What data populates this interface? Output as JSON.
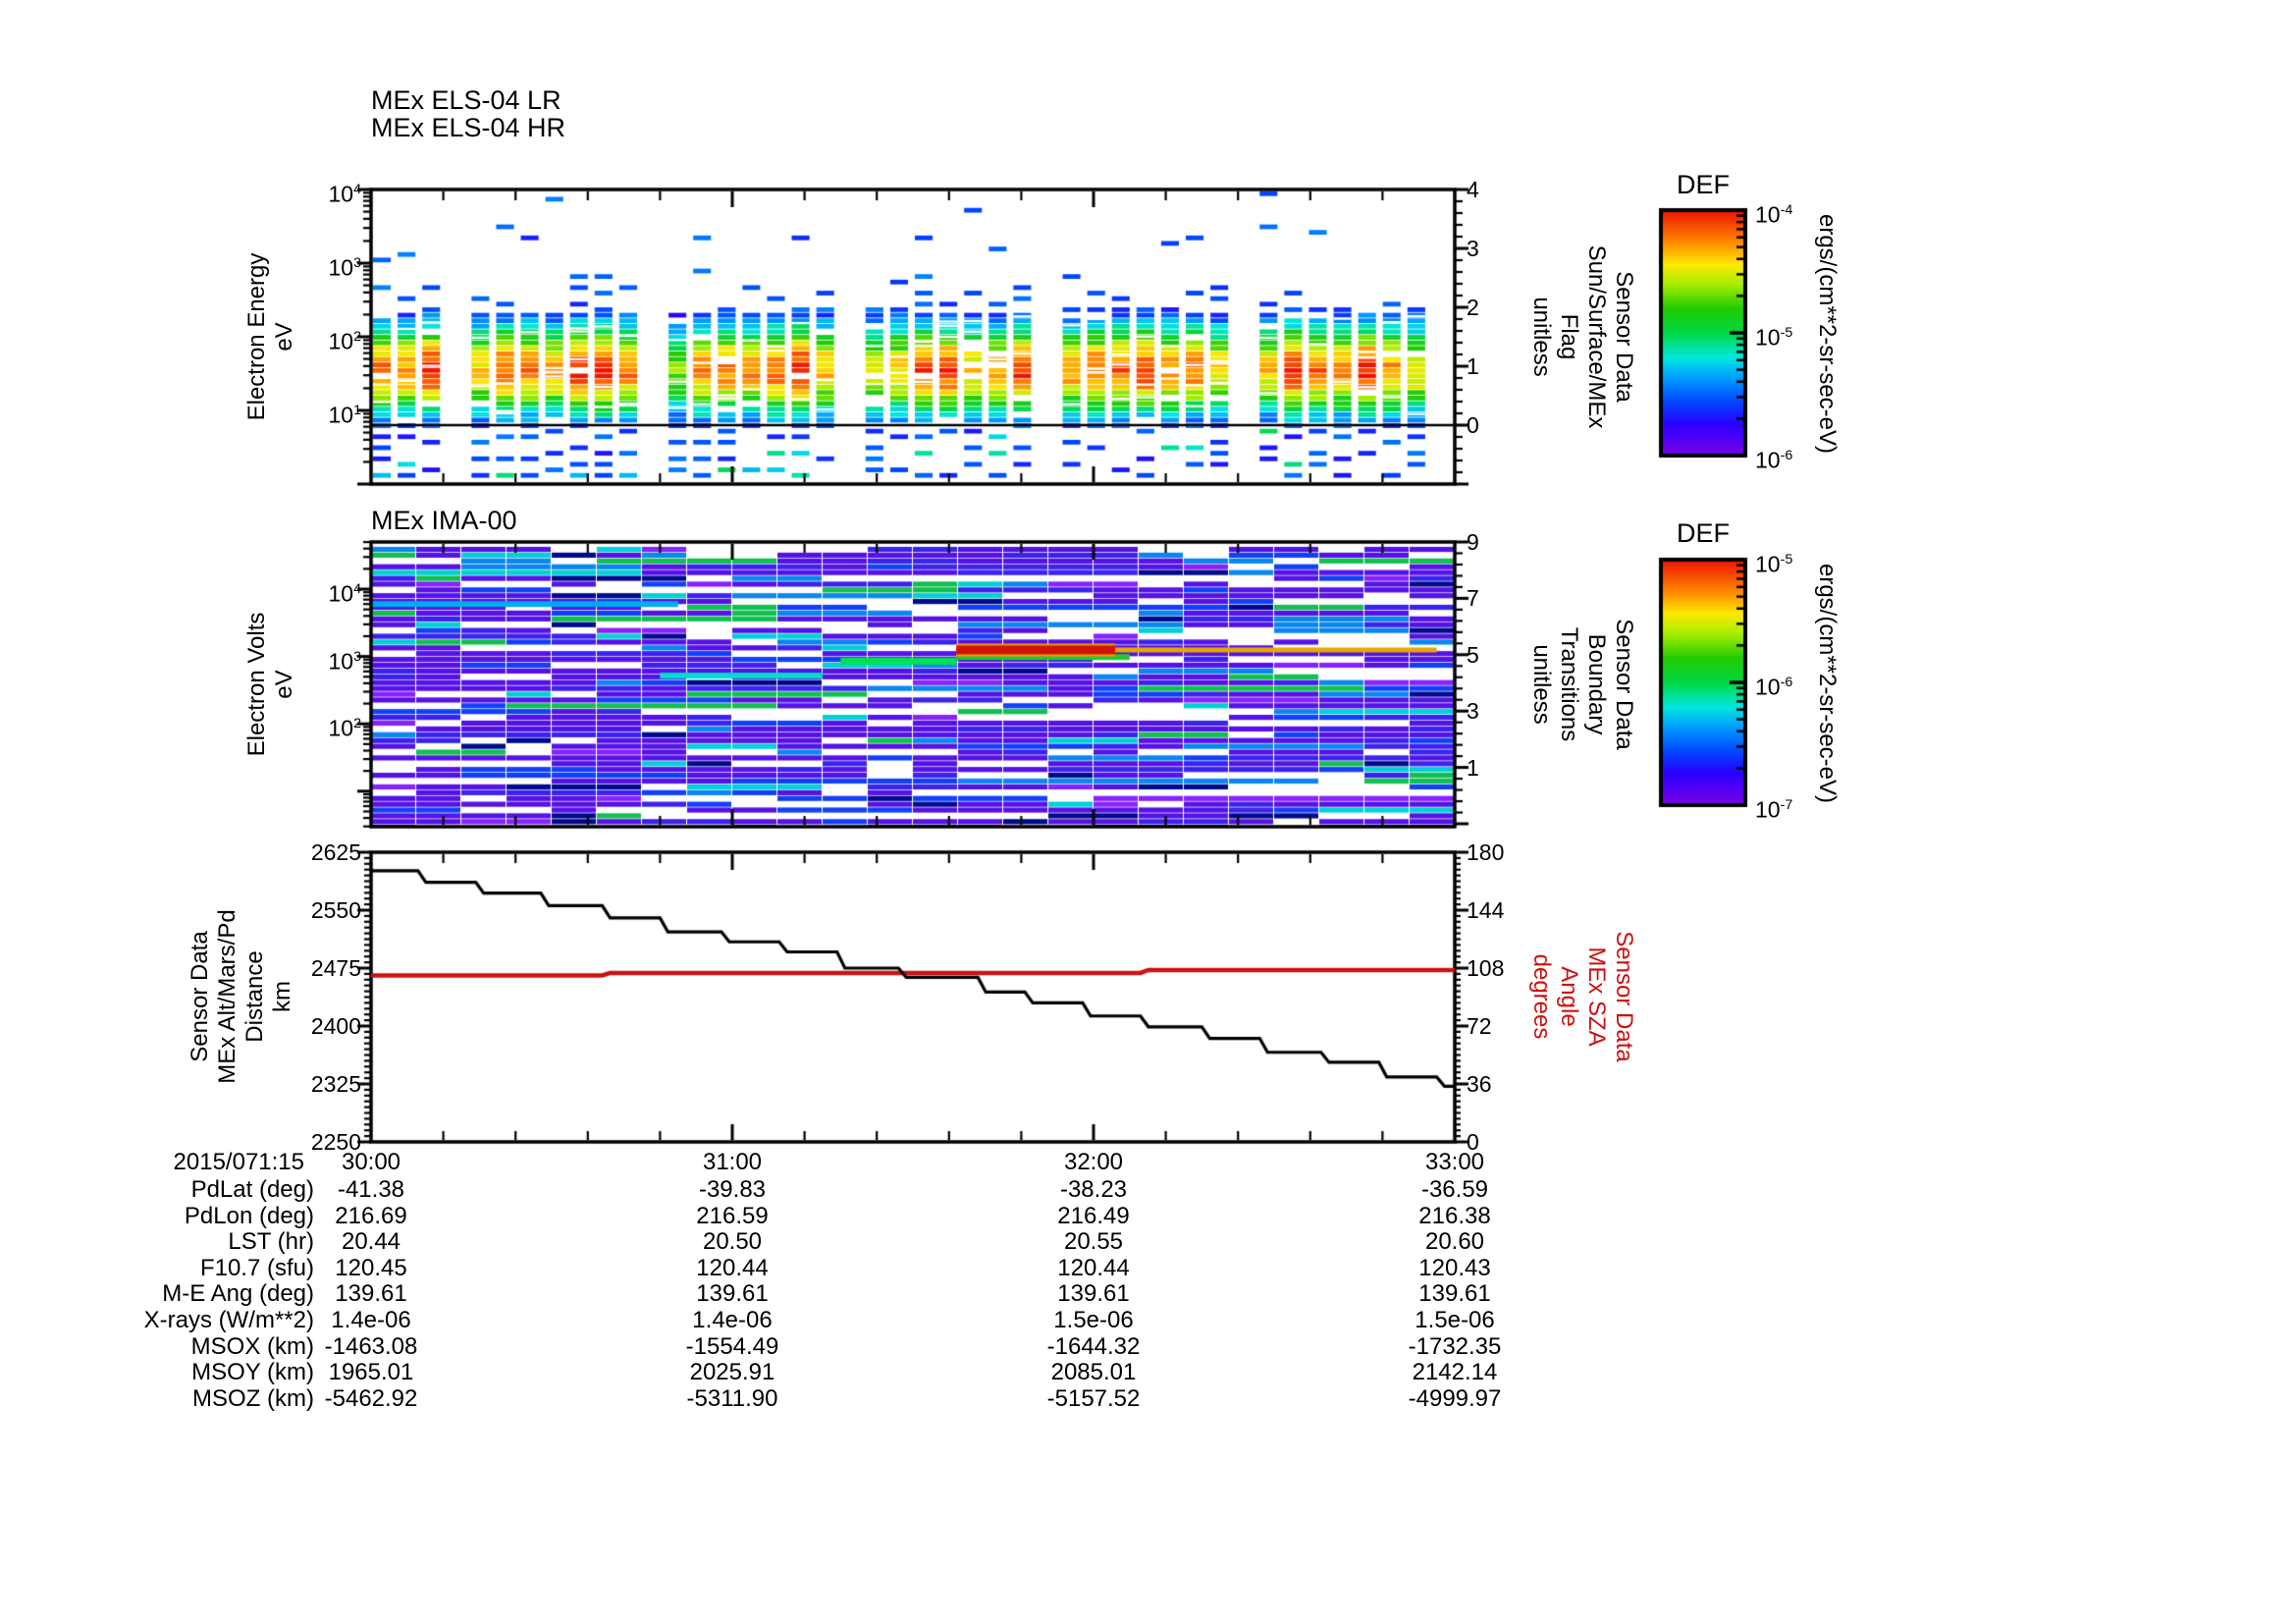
{
  "page": {
    "background": "#ffffff"
  },
  "x_axis": {
    "date_label": "2015/071:15",
    "tick_labels": [
      "30:00",
      "31:00",
      "32:00",
      "33:00"
    ],
    "tick_minutes": [
      30,
      31,
      32,
      33
    ],
    "minutes_range": [
      30,
      33
    ],
    "minor_tick_step_minutes": 0.2
  },
  "chart_data": [
    {
      "id": "els_spectrogram",
      "type": "heatmap",
      "title_line1": "MEx ELS-04 LR",
      "title_line2": "MEx ELS-04 HR",
      "ylabel_lines": [
        "Electron Energy",
        "eV"
      ],
      "y_scale": "log",
      "y_range_ev": [
        1,
        10000
      ],
      "y_tick_exponents": [
        4,
        3,
        2,
        1
      ],
      "right_axis": {
        "label_lines": [
          "Sensor Data",
          "Sun/Surface/MEx",
          "Flag",
          "unitless"
        ],
        "ticks": [
          4,
          3,
          2,
          1,
          0
        ],
        "flag_line_value": 0
      },
      "colorbar": {
        "title": "DEF",
        "tick_exponents": [
          -4,
          -5,
          -6
        ],
        "unit_label": "ergs/(cm**2-sr-sec-eV)"
      },
      "features": {
        "gap_period_columns": 8,
        "band_peak_ev": 38,
        "band_sigma_decades": 0.46,
        "band_range_ev": [
          7,
          200
        ],
        "scattered_dash_range_ev": [
          200,
          9000
        ]
      },
      "content_summary": "Electron energy spectrogram: intense red-orange flux band 25-80 eV, yellow-green 8-150 eV, blue-cyan fringes, sparse blue dashes 150 eV - 9 keV and below 6 eV, periodic white data gaps, black flag line at flag value 0"
    },
    {
      "id": "ima_spectrogram",
      "type": "heatmap",
      "title": "MEx IMA-00",
      "ylabel_lines": [
        "Electron Volts",
        "eV"
      ],
      "y_scale": "log",
      "y_range_ev": [
        3,
        50000
      ],
      "y_tick_exponents": [
        4,
        3,
        2
      ],
      "right_axis": {
        "label_lines": [
          "Sensor Data",
          "Boundary",
          "Transitions",
          "unitless"
        ],
        "ticks": [
          9,
          7,
          5,
          3,
          1
        ]
      },
      "colorbar": {
        "title": "DEF",
        "tick_exponents": [
          -5,
          -6,
          -7
        ],
        "unit_label": "ergs/(cm**2-sr-sec-eV)"
      },
      "features": [
        {
          "kind": "row",
          "energy_ev": 6000,
          "t": [
            30.0,
            30.85
          ],
          "color": "#00aaee",
          "h": 6
        },
        {
          "kind": "row",
          "energy_ev": 520,
          "t": [
            30.8,
            31.25
          ],
          "color": "#00ddcc",
          "h": 6
        },
        {
          "kind": "row",
          "energy_ev": 850,
          "t": [
            31.3,
            31.62
          ],
          "color": "#00e055",
          "h": 7
        },
        {
          "kind": "row",
          "energy_ev": 980,
          "t": [
            31.62,
            32.1
          ],
          "color": "#22c832",
          "h": 6
        },
        {
          "kind": "row",
          "energy_ev": 1250,
          "t": [
            31.62,
            32.06
          ],
          "color": "#cc1500",
          "h": 9,
          "halo": "#ff9900"
        },
        {
          "kind": "row",
          "energy_ev": 1250,
          "t": [
            32.06,
            32.95
          ],
          "color": "#e6a800",
          "h": 5
        }
      ],
      "content_summary": "Ion/electron volt spectrogram: dense horizontal purple-indigo and blue striping with white gaps in blocky columns, occasional cyan rows, bright green segments near 850-1000 eV around 31:20-32:05, red-orange streak near 1250 eV from 31:37 to 32:04"
    },
    {
      "id": "alt_sza_line",
      "type": "line",
      "left_axis": {
        "label_lines": [
          "Sensor Data",
          "MEx Alt/Mars/Pd",
          "Distance",
          "km"
        ],
        "ticks": [
          2625,
          2550,
          2475,
          2400,
          2325,
          2250
        ],
        "range": [
          2250,
          2625
        ],
        "major_step": 75,
        "minor_step": 7.5
      },
      "right_axis": {
        "label_lines": [
          "Sensor Data",
          "MEx SZA",
          "Angle",
          "degrees"
        ],
        "ticks": [
          180,
          144,
          108,
          72,
          36,
          0
        ],
        "range": [
          0,
          180
        ],
        "major_step": 36,
        "minor_step": 3.6,
        "color": "#cc1111"
      },
      "series": [
        {
          "name": "MEx Alt/Mars/Pd Distance",
          "axis": "left",
          "color": "#000000",
          "style": "steps",
          "points": [
            [
              30.0,
              2601
            ],
            [
              30.13,
              2586
            ],
            [
              30.29,
              2572
            ],
            [
              30.47,
              2556
            ],
            [
              30.64,
              2540
            ],
            [
              30.8,
              2522
            ],
            [
              30.97,
              2509
            ],
            [
              31.13,
              2496
            ],
            [
              31.29,
              2475
            ],
            [
              31.46,
              2463
            ],
            [
              31.68,
              2444
            ],
            [
              31.81,
              2430
            ],
            [
              31.97,
              2413
            ],
            [
              32.13,
              2399
            ],
            [
              32.3,
              2384
            ],
            [
              32.46,
              2366
            ],
            [
              32.63,
              2353
            ],
            [
              32.79,
              2334
            ],
            [
              32.95,
              2322
            ]
          ]
        },
        {
          "name": "MEx SZA Angle",
          "axis": "right",
          "color": "#cc1111",
          "style": "steps",
          "points": [
            [
              30.0,
              103.5
            ],
            [
              30.64,
              105.0
            ],
            [
              32.13,
              106.8
            ]
          ]
        }
      ]
    }
  ],
  "table": {
    "row_labels": [
      "PdLat (deg)",
      "PdLon (deg)",
      "LST (hr)",
      "F10.7 (sfu)",
      "M-E Ang (deg)",
      "X-rays (W/m**2)",
      "MSOX (km)",
      "MSOY (km)",
      "MSOZ (km)"
    ],
    "rows": [
      [
        "-41.38",
        "-39.83",
        "-38.23",
        "-36.59"
      ],
      [
        "216.69",
        "216.59",
        "216.49",
        "216.38"
      ],
      [
        "20.44",
        "20.50",
        "20.55",
        "20.60"
      ],
      [
        "120.45",
        "120.44",
        "120.44",
        "120.43"
      ],
      [
        "139.61",
        "139.61",
        "139.61",
        "139.61"
      ],
      [
        "1.4e-06",
        "1.4e-06",
        "1.5e-06",
        "1.5e-06"
      ],
      [
        "-1463.08",
        "-1554.49",
        "-1644.32",
        "-1732.35"
      ],
      [
        "1965.01",
        "2025.91",
        "2085.01",
        "2142.14"
      ],
      [
        "-5462.92",
        "-5311.90",
        "-5157.52",
        "-4999.97"
      ]
    ]
  }
}
